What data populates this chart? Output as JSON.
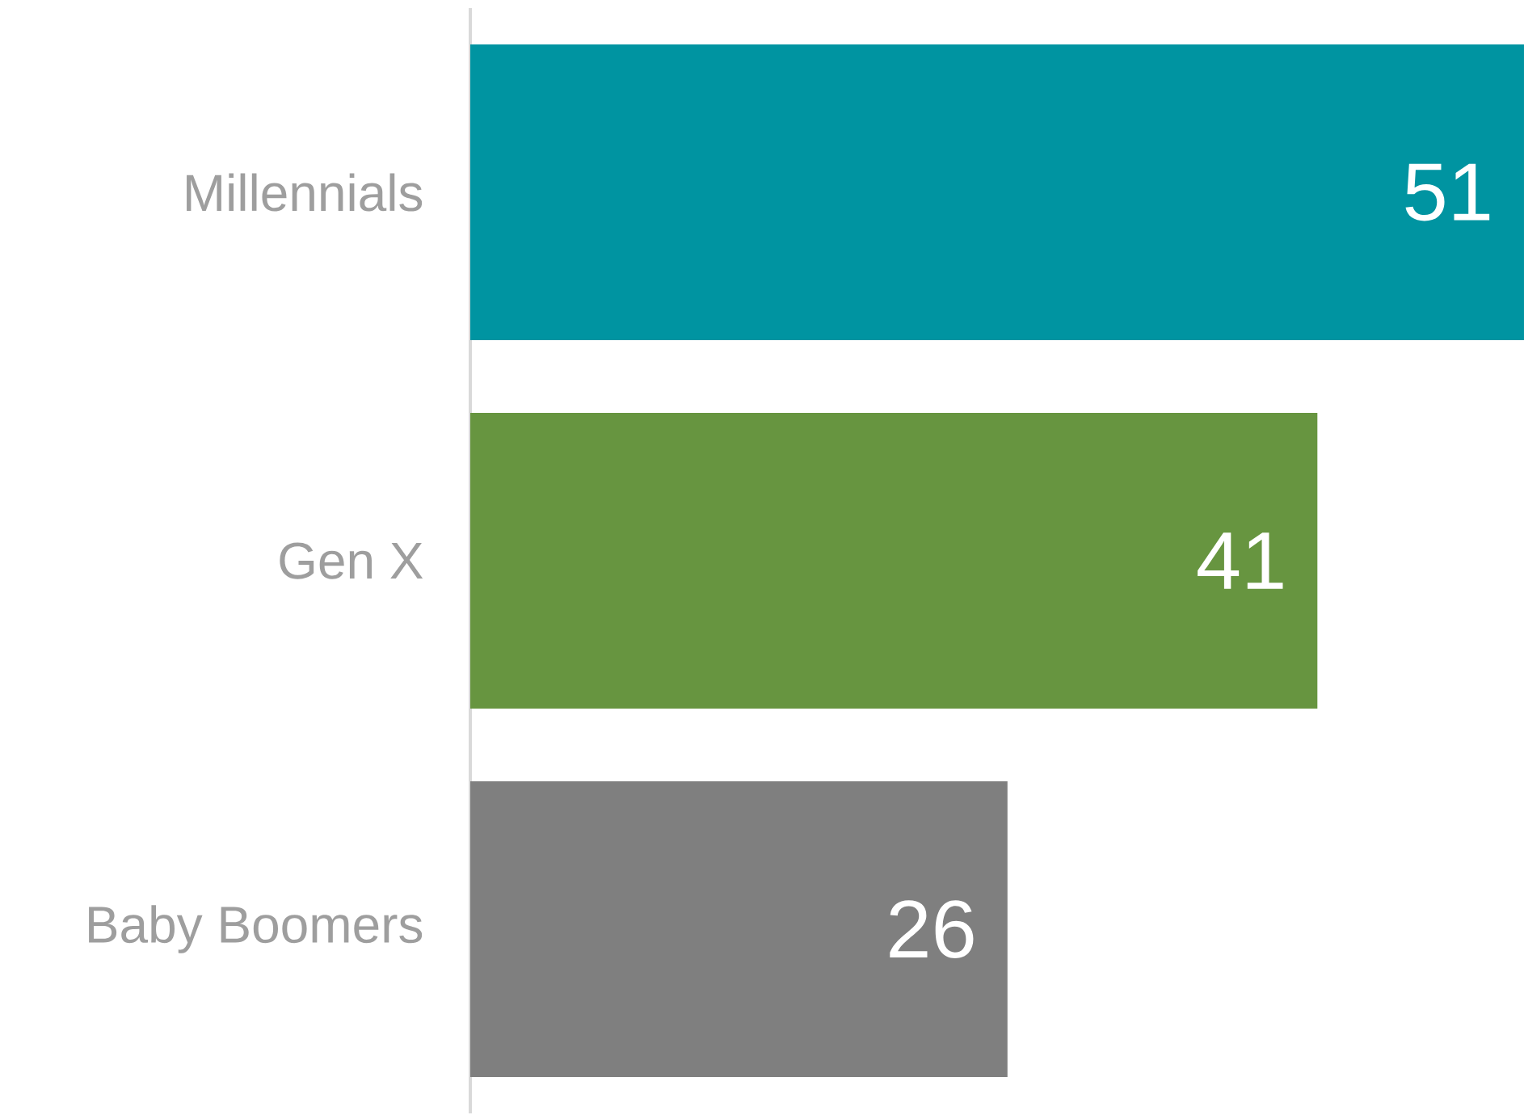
{
  "chart_data": {
    "type": "bar",
    "orientation": "horizontal",
    "categories": [
      "Millennials",
      "Gen X",
      "Baby Boomers"
    ],
    "values": [
      51,
      41,
      26
    ],
    "colors": [
      "#0094a1",
      "#679540",
      "#7f7f7f"
    ],
    "xlim": [
      0,
      51
    ],
    "data_labels": true,
    "tick_labels": "y",
    "grid": false
  }
}
